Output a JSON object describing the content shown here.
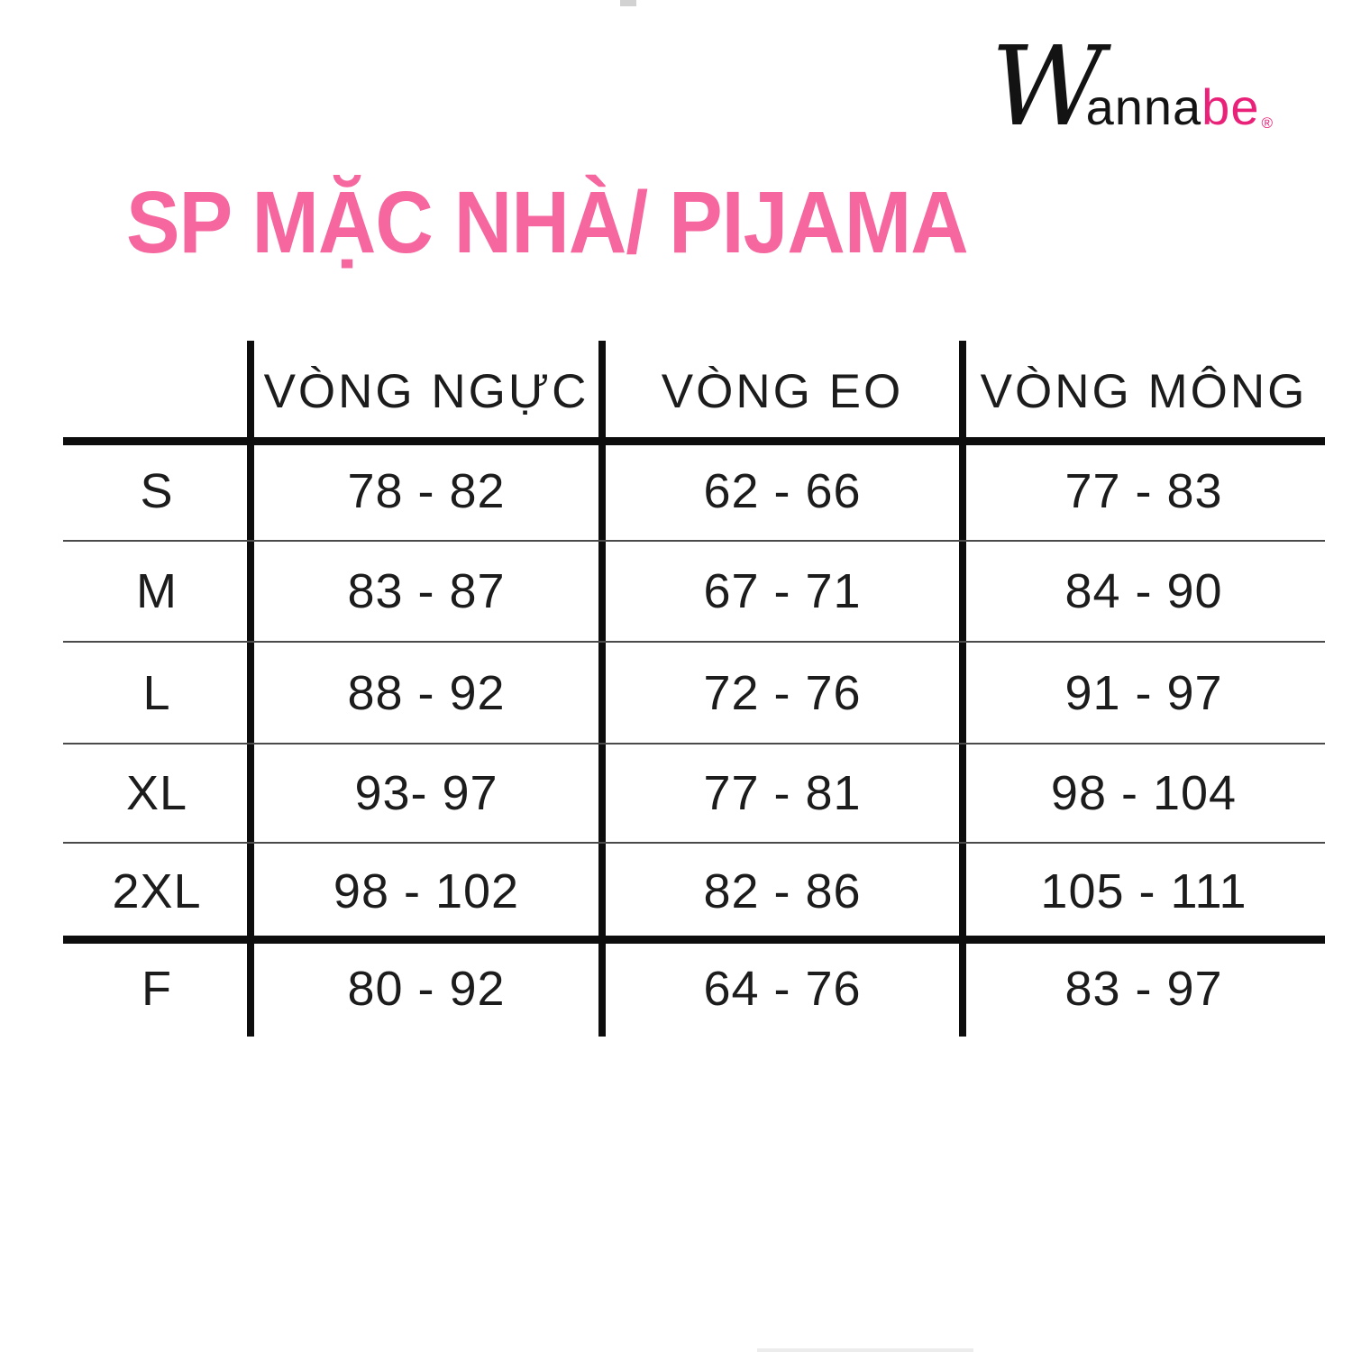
{
  "logo": {
    "script_w": "W",
    "black_part": "anna",
    "pink_part": "be",
    "registered": "®"
  },
  "page_title": "SP MẶC NHÀ/ PIJAMA",
  "colors": {
    "title_pink": "#f5679e",
    "logo_pink": "#ea2179",
    "rule_black": "#0d0d0d",
    "text_black": "#1c1c1c"
  },
  "chart_data": {
    "type": "table",
    "title": "SP MẶC NHÀ/ PIJAMA",
    "columns": [
      "",
      "VÒNG NGỰC",
      "VÒNG EO",
      "VÒNG MÔNG"
    ],
    "rows": [
      [
        "S",
        "78 - 82",
        "62 - 66",
        "77 - 83"
      ],
      [
        "M",
        "83 - 87",
        "67 - 71",
        "84 - 90"
      ],
      [
        "L",
        "88 - 92",
        "72 - 76",
        "91 - 97"
      ],
      [
        "XL",
        "93- 97",
        "77 - 81",
        "98 - 104"
      ],
      [
        "2XL",
        "98 - 102",
        "82 - 86",
        "105 - 111"
      ],
      [
        "F",
        "80 - 92",
        "64 - 76",
        "83 - 97"
      ]
    ],
    "layout": {
      "header_separator": "thick",
      "row_separators": "thin",
      "separator_before_last_row": "thick",
      "outer_border": "none"
    }
  }
}
